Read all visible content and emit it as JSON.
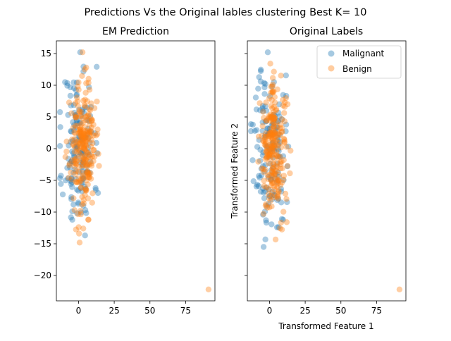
{
  "suptitle": "Predictions Vs the Original lables clustering Best K= 10",
  "chart_data": [
    {
      "type": "scatter",
      "title": "EM Prediction",
      "xlabel": "",
      "ylabel": "",
      "xlim": [
        -15.5,
        95.5
      ],
      "ylim": [
        -24,
        17
      ],
      "xticks": [
        "0",
        "25",
        "50",
        "75"
      ],
      "yticks": [
        "15",
        "10",
        "5",
        "0",
        "−5",
        "−10",
        "−15",
        "−20"
      ],
      "legend": null,
      "colors": [
        "#1f77b4",
        "#ff7f0e"
      ],
      "series": [
        {
          "seed": 11,
          "n": 150,
          "x_mean": 0,
          "x_sd": 5.5,
          "y_sd": 6.5,
          "outlier": null
        },
        {
          "seed": 23,
          "n": 240,
          "x_mean": 3,
          "x_sd": 4.5,
          "y_sd": 5.0,
          "outlier": [
            91,
            -22.2
          ]
        }
      ]
    },
    {
      "type": "scatter",
      "title": "Original Labels",
      "xlabel": "Transformed Feature 1",
      "ylabel": "Transformed Feature 2",
      "xlim": [
        -15.5,
        95.5
      ],
      "ylim": [
        -24,
        17
      ],
      "xticks": [
        "0",
        "25",
        "50",
        "75"
      ],
      "yticks": [],
      "legend": "top-right",
      "colors": [
        "#1f77b4",
        "#ff7f0e"
      ],
      "series": [
        {
          "name": "Malignant",
          "seed": 37,
          "n": 150,
          "x_mean": 0,
          "x_sd": 5.5,
          "y_sd": 6.5,
          "outlier": null
        },
        {
          "name": "Benign",
          "seed": 41,
          "n": 240,
          "x_mean": 3,
          "x_sd": 4.5,
          "y_sd": 5.0,
          "outlier": [
            91,
            -22.2
          ]
        }
      ]
    }
  ]
}
